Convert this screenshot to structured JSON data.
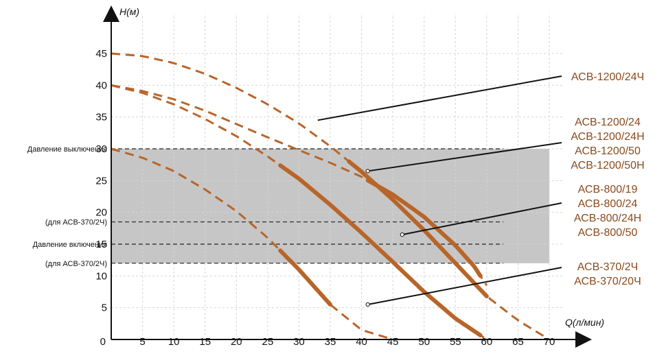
{
  "colors": {
    "curve": "#b8652a",
    "curve_dark": "#8a4a1c",
    "band": "#c6c6c6",
    "axis": "#111111"
  },
  "chart_data": {
    "type": "line",
    "xlabel": "Q(л/мин)",
    "ylabel": "H(м)",
    "xlim": [
      0,
      70
    ],
    "ylim": [
      0,
      45
    ],
    "xticks": [
      0,
      5,
      10,
      15,
      20,
      25,
      30,
      35,
      40,
      45,
      50,
      55,
      60,
      65,
      70
    ],
    "yticks": [
      5,
      10,
      15,
      20,
      25,
      30,
      35,
      40,
      45
    ],
    "grid": true,
    "pressure_band": {
      "y_min": 12,
      "y_max": 30
    },
    "reference_lines": [
      {
        "label": "Давление выключения",
        "y": 30
      },
      {
        "label": "(для АСВ-370/2Ч)",
        "y": 18.5
      },
      {
        "label": "Давление включения",
        "y": 15
      },
      {
        "label": "(для АСВ-370/2Ч)",
        "y": 12
      }
    ],
    "series": [
      {
        "name": "АСВ-1200/24Ч",
        "x": [
          0,
          5,
          10,
          15,
          20,
          25,
          30,
          35,
          40,
          45,
          50,
          55,
          60,
          65,
          70
        ],
        "y": [
          45,
          44.6,
          43.5,
          41.8,
          39.6,
          37.0,
          34.0,
          30.4,
          26.4,
          22.0,
          17.2,
          12.0,
          6.8,
          3.0,
          0
        ],
        "solid_range": [
          38,
          60
        ]
      },
      {
        "name": "АСВ-1200/24",
        "x": [
          0,
          5,
          10,
          15,
          20,
          25,
          30,
          35,
          40,
          45,
          50,
          55,
          58,
          60
        ],
        "y": [
          40,
          39.1,
          37.8,
          36.0,
          33.9,
          31.8,
          29.8,
          27.8,
          25.6,
          22.8,
          19.3,
          14.8,
          11.5,
          8.5
        ],
        "solid_range": [
          41,
          59
        ]
      },
      {
        "name": "АСВ-800/19",
        "x": [
          0,
          5,
          10,
          15,
          20,
          25,
          30,
          35,
          40,
          45,
          50,
          55,
          60
        ],
        "y": [
          40,
          38.8,
          37.0,
          34.7,
          32.0,
          28.8,
          25.3,
          21.2,
          16.8,
          12.2,
          7.5,
          3.3,
          0
        ],
        "solid_range": [
          27,
          59
        ]
      },
      {
        "name": "АСВ-370/2Ч",
        "x": [
          0,
          5,
          10,
          15,
          20,
          25,
          30,
          35,
          40,
          45
        ],
        "y": [
          30,
          28.6,
          26.5,
          23.6,
          20.2,
          16.0,
          11.0,
          5.5,
          1.5,
          0
        ],
        "solid_range": [
          27,
          35
        ]
      }
    ],
    "legend": [
      {
        "labels": [
          "АСВ-1200/24Ч"
        ],
        "series": 0,
        "point": [
          33,
          34.5
        ]
      },
      {
        "labels": [
          "АСВ-1200/24",
          "АСВ-1200/24Н",
          "АСВ-1200/50",
          "АСВ-1200/50Н"
        ],
        "series": 1,
        "point": [
          41,
          26.5
        ]
      },
      {
        "labels": [
          "АСВ-800/19",
          "АСВ-800/24",
          "АСВ-800/24Н",
          "АСВ-800/50"
        ],
        "series": 2,
        "point": [
          46.5,
          16.5
        ]
      },
      {
        "labels": [
          "АСВ-370/2Ч",
          "АСВ-370/20Ч"
        ],
        "series": 3,
        "point": [
          41,
          5.5
        ]
      }
    ]
  }
}
